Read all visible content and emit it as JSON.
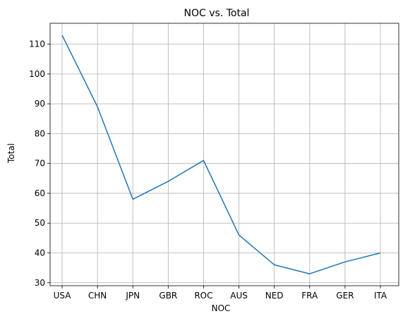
{
  "chart_data": {
    "type": "line",
    "title": "NOC vs. Total",
    "xlabel": "NOC",
    "ylabel": "Total",
    "categories": [
      "USA",
      "CHN",
      "JPN",
      "GBR",
      "ROC",
      "AUS",
      "NED",
      "FRA",
      "GER",
      "ITA"
    ],
    "series": [
      {
        "values": [
          113,
          89,
          58,
          64,
          71,
          46,
          36,
          33,
          37,
          40
        ],
        "color": "#1f77b4"
      }
    ],
    "ylim": [
      29,
      117
    ],
    "yticks": [
      30,
      40,
      50,
      60,
      70,
      80,
      90,
      100,
      110
    ],
    "grid": true,
    "legend": "none"
  }
}
